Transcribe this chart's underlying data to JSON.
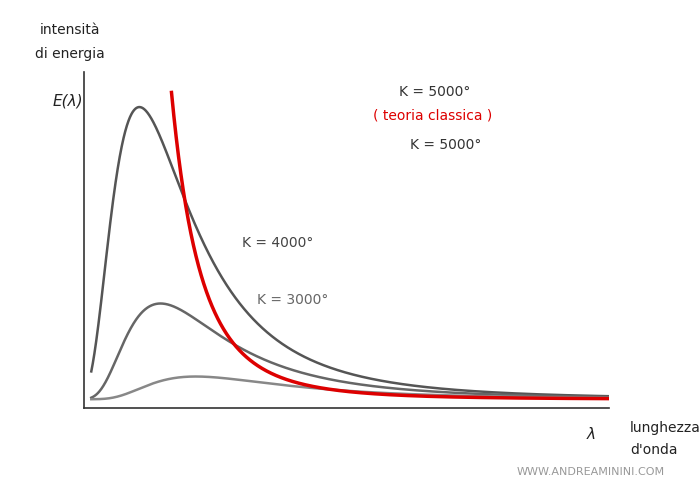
{
  "ylabel": "E(λ)",
  "xlabel_lambda": "λ",
  "curves": [
    {
      "label": "K = 5000°",
      "T": 5000,
      "color": "#555555",
      "lw": 1.8
    },
    {
      "label": "K = 4000°",
      "T": 4000,
      "color": "#666666",
      "lw": 1.8
    },
    {
      "label": "K = 3000°",
      "T": 3000,
      "color": "#888888",
      "lw": 1.8
    }
  ],
  "classical_label1": "K = 5000°",
  "classical_label2": "( teoria classica )",
  "classical_color": "#dd0000",
  "classical_lw": 2.5,
  "background_color": "#ffffff",
  "watermark": "WWW.ANDREAMININI.COM"
}
